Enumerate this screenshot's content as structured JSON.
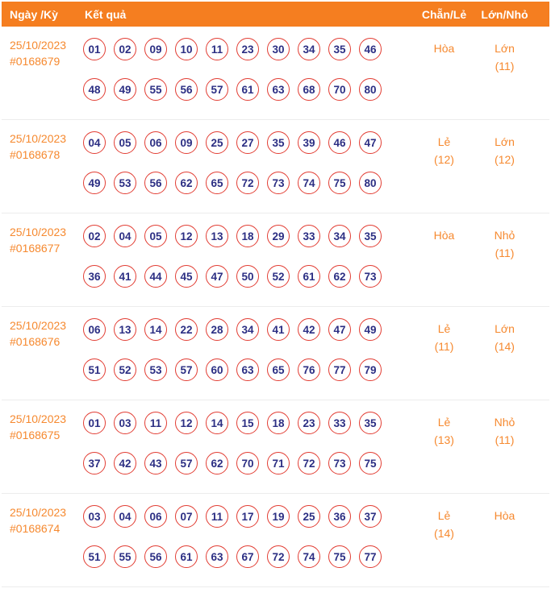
{
  "colors": {
    "header_bg": "#f57e20",
    "accent_text": "#f6892f",
    "ball_border": "#e23d33",
    "ball_text": "#2b2e83",
    "row_border": "#ececec"
  },
  "header": {
    "col_date": "Ngày /Kỳ",
    "col_result": "Kết quả",
    "col_even_odd": "Chẵn/Lẻ",
    "col_big_small": "Lớn/Nhỏ"
  },
  "rows": [
    {
      "date": "25/10/2023",
      "draw_id": "#0168679",
      "numbers": [
        "01",
        "02",
        "09",
        "10",
        "11",
        "23",
        "30",
        "34",
        "35",
        "46",
        "48",
        "49",
        "55",
        "56",
        "57",
        "61",
        "63",
        "68",
        "70",
        "80"
      ],
      "even_odd": "Hòa",
      "even_odd_count": "",
      "big_small": "Lớn",
      "big_small_count": "(11)"
    },
    {
      "date": "25/10/2023",
      "draw_id": "#0168678",
      "numbers": [
        "04",
        "05",
        "06",
        "09",
        "25",
        "27",
        "35",
        "39",
        "46",
        "47",
        "49",
        "53",
        "56",
        "62",
        "65",
        "72",
        "73",
        "74",
        "75",
        "80"
      ],
      "even_odd": "Lẻ",
      "even_odd_count": "(12)",
      "big_small": "Lớn",
      "big_small_count": "(12)"
    },
    {
      "date": "25/10/2023",
      "draw_id": "#0168677",
      "numbers": [
        "02",
        "04",
        "05",
        "12",
        "13",
        "18",
        "29",
        "33",
        "34",
        "35",
        "36",
        "41",
        "44",
        "45",
        "47",
        "50",
        "52",
        "61",
        "62",
        "73"
      ],
      "even_odd": "Hòa",
      "even_odd_count": "",
      "big_small": "Nhỏ",
      "big_small_count": "(11)"
    },
    {
      "date": "25/10/2023",
      "draw_id": "#0168676",
      "numbers": [
        "06",
        "13",
        "14",
        "22",
        "28",
        "34",
        "41",
        "42",
        "47",
        "49",
        "51",
        "52",
        "53",
        "57",
        "60",
        "63",
        "65",
        "76",
        "77",
        "79"
      ],
      "even_odd": "Lẻ",
      "even_odd_count": "(11)",
      "big_small": "Lớn",
      "big_small_count": "(14)"
    },
    {
      "date": "25/10/2023",
      "draw_id": "#0168675",
      "numbers": [
        "01",
        "03",
        "11",
        "12",
        "14",
        "15",
        "18",
        "23",
        "33",
        "35",
        "37",
        "42",
        "43",
        "57",
        "62",
        "70",
        "71",
        "72",
        "73",
        "75"
      ],
      "even_odd": "Lẻ",
      "even_odd_count": "(13)",
      "big_small": "Nhỏ",
      "big_small_count": "(11)"
    },
    {
      "date": "25/10/2023",
      "draw_id": "#0168674",
      "numbers": [
        "03",
        "04",
        "06",
        "07",
        "11",
        "17",
        "19",
        "25",
        "36",
        "37",
        "51",
        "55",
        "56",
        "61",
        "63",
        "67",
        "72",
        "74",
        "75",
        "77"
      ],
      "even_odd": "Lẻ",
      "even_odd_count": "(14)",
      "big_small": "Hòa",
      "big_small_count": ""
    }
  ]
}
